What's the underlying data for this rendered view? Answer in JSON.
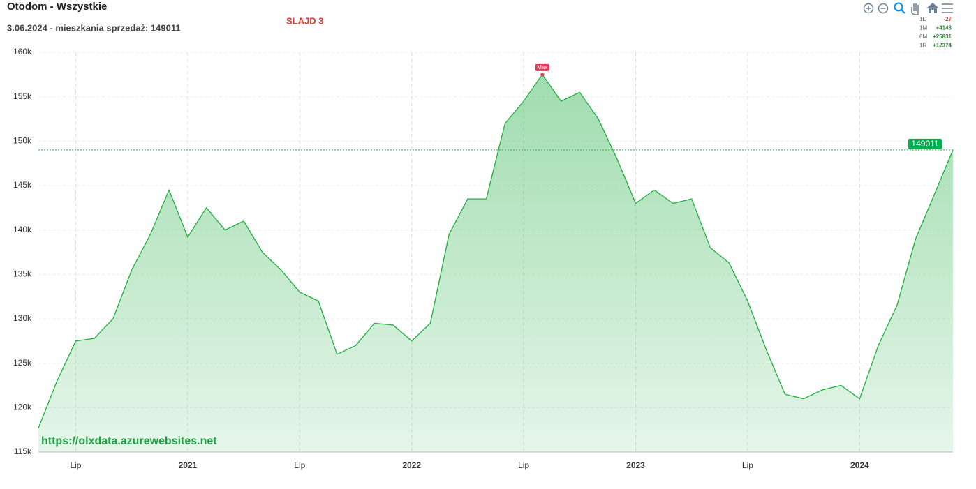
{
  "chart_data": {
    "type": "area",
    "title": "Otodom - Wszystkie",
    "subtitle": "3.06.2024 - mieszkania sprzedaż: 149011",
    "annotation": "SLAJD 3",
    "watermark": "https://olxdata.azurewebsites.net",
    "max_label": "Max",
    "color": "#1fae3f",
    "grid": true,
    "x": [
      "2020-05",
      "2020-06",
      "2020-07",
      "2020-08",
      "2020-09",
      "2020-10",
      "2020-11",
      "2020-12",
      "2021-01",
      "2021-02",
      "2021-03",
      "2021-04",
      "2021-05",
      "2021-06",
      "2021-07",
      "2021-08",
      "2021-09",
      "2021-10",
      "2021-11",
      "2021-12",
      "2022-01",
      "2022-02",
      "2022-03",
      "2022-04",
      "2022-05",
      "2022-06",
      "2022-07",
      "2022-08",
      "2022-09",
      "2022-10",
      "2022-11",
      "2022-12",
      "2023-01",
      "2023-02",
      "2023-03",
      "2023-04",
      "2023-05",
      "2023-06",
      "2023-07",
      "2023-08",
      "2023-09",
      "2023-10",
      "2023-11",
      "2023-12",
      "2024-01",
      "2024-02",
      "2024-03",
      "2024-04",
      "2024-05",
      "2024-06"
    ],
    "values": [
      117700,
      123000,
      127500,
      127800,
      130000,
      135500,
      139500,
      144500,
      139200,
      142500,
      140000,
      141000,
      137500,
      135500,
      133000,
      132000,
      126000,
      127000,
      129500,
      129300,
      127500,
      129500,
      139500,
      143500,
      143500,
      152000,
      154500,
      157500,
      154500,
      155500,
      152500,
      148000,
      143000,
      144500,
      143000,
      143500,
      138000,
      136300,
      132000,
      126500,
      121500,
      121000,
      122000,
      122500,
      121000,
      127000,
      131500,
      139000,
      144000,
      149011
    ],
    "xlim": [
      "2020-05",
      "2024-06"
    ],
    "xticks": [
      {
        "value": "2020-07",
        "label": "Lip"
      },
      {
        "value": "2021-01",
        "label": "2021"
      },
      {
        "value": "2021-07",
        "label": "Lip"
      },
      {
        "value": "2022-01",
        "label": "2022"
      },
      {
        "value": "2022-07",
        "label": "Lip"
      },
      {
        "value": "2023-01",
        "label": "2023"
      },
      {
        "value": "2023-07",
        "label": "Lip"
      },
      {
        "value": "2024-01",
        "label": "2024"
      }
    ],
    "ylim": [
      115000,
      160000
    ],
    "yticks": [
      {
        "value": 115000,
        "label": "115k"
      },
      {
        "value": 120000,
        "label": "120k"
      },
      {
        "value": 125000,
        "label": "125k"
      },
      {
        "value": 130000,
        "label": "130k"
      },
      {
        "value": 135000,
        "label": "135k"
      },
      {
        "value": 140000,
        "label": "140k"
      },
      {
        "value": 145000,
        "label": "145k"
      },
      {
        "value": 150000,
        "label": "150k"
      },
      {
        "value": 155000,
        "label": "155k"
      },
      {
        "value": 160000,
        "label": "160k"
      }
    ],
    "stats": [
      {
        "period": "1D",
        "change": "-27"
      },
      {
        "period": "1M",
        "change": "+4143"
      },
      {
        "period": "6M",
        "change": "+25831"
      },
      {
        "period": "1R",
        "change": "+12374"
      }
    ]
  }
}
